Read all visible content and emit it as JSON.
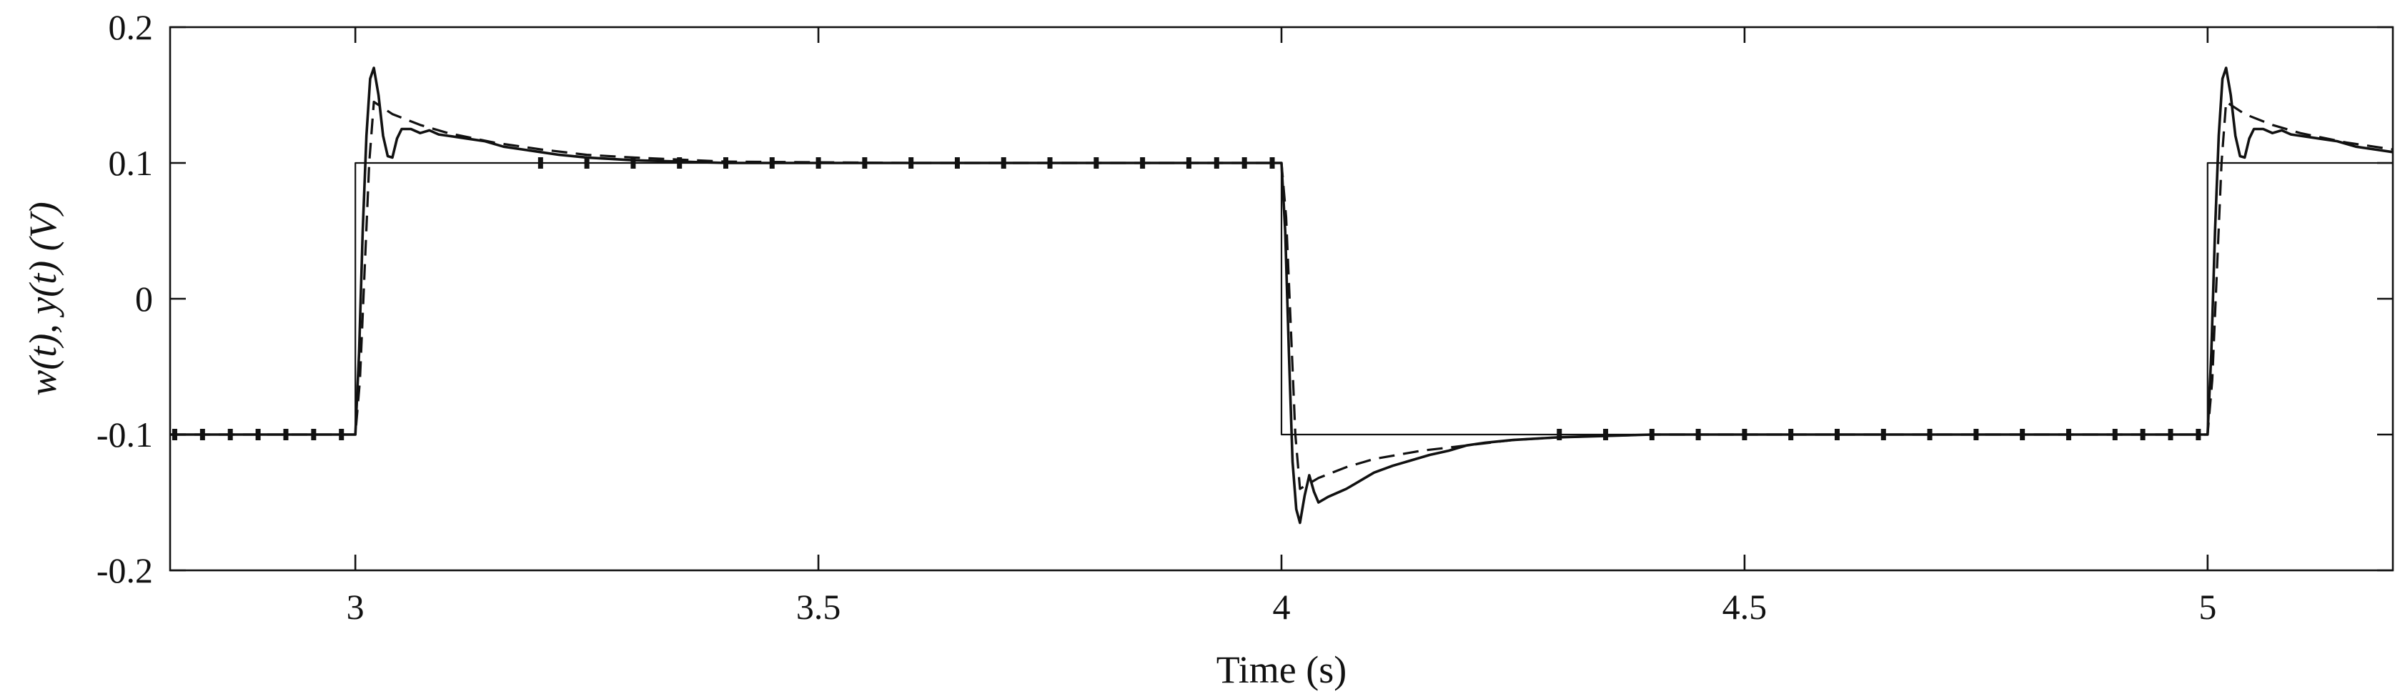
{
  "chart_data": {
    "type": "line",
    "title": "",
    "xlabel": "Time (s)",
    "ylabel": "w(t), y(t) (V)",
    "xlim": [
      2.8,
      5.2
    ],
    "ylim": [
      -0.2,
      0.2
    ],
    "xticks": [
      3,
      3.5,
      4,
      4.5,
      5
    ],
    "xtick_labels": [
      "3",
      "3.5",
      "4",
      "4.5",
      "5"
    ],
    "yticks": [
      -0.2,
      -0.1,
      0,
      0.1,
      0.2
    ],
    "ytick_labels": [
      "-0.2",
      "-0.1",
      "0",
      "0.1",
      "0.2"
    ],
    "grid": false,
    "legend": "none",
    "colors": {
      "line": "#111111",
      "background": "#ffffff"
    },
    "series": [
      {
        "style": "solid-thin",
        "x": [
          2.8,
          3.0,
          3.0,
          4.0,
          4.0,
          5.0,
          5.0,
          5.2
        ],
        "y": [
          -0.1,
          -0.1,
          0.1,
          0.1,
          -0.1,
          -0.1,
          0.1,
          0.1
        ]
      },
      {
        "style": "dashed",
        "x": [
          2.8,
          3.0,
          3.005,
          3.01,
          3.015,
          3.02,
          3.04,
          3.07,
          3.1,
          3.15,
          3.2,
          3.25,
          3.3,
          3.4,
          3.6,
          3.9,
          4.0,
          4.005,
          4.01,
          4.015,
          4.02,
          4.04,
          4.07,
          4.1,
          4.15,
          4.2,
          4.25,
          4.3,
          4.4,
          4.6,
          4.9,
          5.0,
          5.005,
          5.01,
          5.015,
          5.02,
          5.04,
          5.07,
          5.1,
          5.15,
          5.2
        ],
        "y": [
          -0.1,
          -0.1,
          -0.06,
          0.02,
          0.1,
          0.145,
          0.136,
          0.128,
          0.122,
          0.115,
          0.11,
          0.106,
          0.104,
          0.101,
          0.1,
          0.1,
          0.1,
          0.06,
          -0.02,
          -0.1,
          -0.14,
          -0.132,
          -0.124,
          -0.118,
          -0.112,
          -0.108,
          -0.104,
          -0.102,
          -0.1,
          -0.1,
          -0.1,
          -0.1,
          -0.06,
          0.02,
          0.1,
          0.145,
          0.136,
          0.128,
          0.122,
          0.115,
          0.11
        ]
      },
      {
        "style": "solid-response",
        "x": [
          2.8,
          3.0,
          3.004,
          3.008,
          3.012,
          3.016,
          3.02,
          3.025,
          3.03,
          3.035,
          3.04,
          3.045,
          3.05,
          3.06,
          3.07,
          3.08,
          3.09,
          3.1,
          3.12,
          3.14,
          3.16,
          3.18,
          3.2,
          3.22,
          3.25,
          3.3,
          3.35,
          3.4,
          3.9,
          4.0,
          4.004,
          4.008,
          4.012,
          4.016,
          4.02,
          4.025,
          4.03,
          4.035,
          4.04,
          4.05,
          4.06,
          4.07,
          4.08,
          4.09,
          4.1,
          4.12,
          4.14,
          4.16,
          4.18,
          4.2,
          4.22,
          4.25,
          4.3,
          4.35,
          4.4,
          4.9,
          5.0,
          5.004,
          5.008,
          5.012,
          5.016,
          5.02,
          5.025,
          5.03,
          5.035,
          5.04,
          5.045,
          5.05,
          5.06,
          5.07,
          5.08,
          5.09,
          5.1,
          5.12,
          5.14,
          5.16,
          5.18,
          5.2
        ],
        "y": [
          -0.1,
          -0.1,
          -0.04,
          0.05,
          0.12,
          0.162,
          0.17,
          0.15,
          0.12,
          0.105,
          0.104,
          0.118,
          0.125,
          0.125,
          0.122,
          0.124,
          0.121,
          0.12,
          0.118,
          0.116,
          0.112,
          0.11,
          0.108,
          0.106,
          0.104,
          0.102,
          0.101,
          0.1,
          0.1,
          0.1,
          0.05,
          -0.04,
          -0.12,
          -0.155,
          -0.165,
          -0.145,
          -0.13,
          -0.142,
          -0.15,
          -0.146,
          -0.143,
          -0.14,
          -0.136,
          -0.132,
          -0.128,
          -0.123,
          -0.119,
          -0.115,
          -0.112,
          -0.108,
          -0.106,
          -0.104,
          -0.102,
          -0.101,
          -0.1,
          -0.1,
          -0.1,
          -0.04,
          0.05,
          0.12,
          0.162,
          0.17,
          0.15,
          0.12,
          0.105,
          0.104,
          0.118,
          0.125,
          0.125,
          0.122,
          0.124,
          0.121,
          0.12,
          0.118,
          0.116,
          0.112,
          0.11,
          0.108
        ]
      },
      {
        "style": "dotted-markers",
        "x": [
          2.805,
          2.835,
          2.865,
          2.895,
          2.925,
          2.955,
          2.985,
          3.2,
          3.25,
          3.3,
          3.35,
          3.4,
          3.45,
          3.5,
          3.55,
          3.6,
          3.65,
          3.7,
          3.75,
          3.8,
          3.85,
          3.9,
          3.93,
          3.96,
          3.99,
          4.3,
          4.35,
          4.4,
          4.45,
          4.5,
          4.55,
          4.6,
          4.65,
          4.7,
          4.75,
          4.8,
          4.85,
          4.9,
          4.93,
          4.96,
          4.99
        ],
        "y": [
          -0.1,
          -0.1,
          -0.1,
          -0.1,
          -0.1,
          -0.1,
          -0.1,
          0.1,
          0.1,
          0.1,
          0.1,
          0.1,
          0.1,
          0.1,
          0.1,
          0.1,
          0.1,
          0.1,
          0.1,
          0.1,
          0.1,
          0.1,
          0.1,
          0.1,
          0.1,
          -0.1,
          -0.1,
          -0.1,
          -0.1,
          -0.1,
          -0.1,
          -0.1,
          -0.1,
          -0.1,
          -0.1,
          -0.1,
          -0.1,
          -0.1,
          -0.1,
          -0.1,
          -0.1
        ]
      }
    ]
  }
}
